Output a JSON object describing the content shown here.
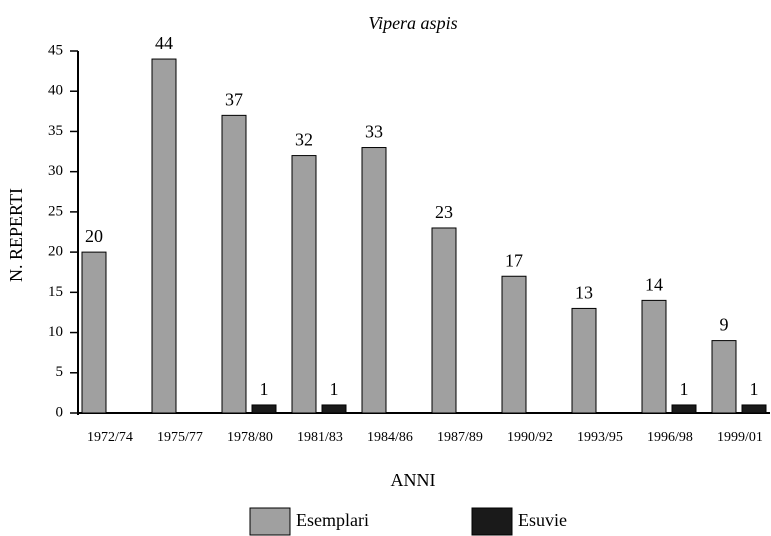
{
  "chart_data": {
    "type": "bar",
    "title": "Vipera aspis",
    "x_label": "ANNI",
    "y_label": "N. REPERTI",
    "categories": [
      "1972/74",
      "1975/77",
      "1978/80",
      "1981/83",
      "1984/86",
      "1987/89",
      "1990/92",
      "1993/95",
      "1996/98",
      "1999/01"
    ],
    "series": [
      {
        "name": "Esemplari",
        "color": "#a0a0a0",
        "values": [
          20,
          44,
          37,
          32,
          33,
          23,
          17,
          13,
          14,
          9
        ]
      },
      {
        "name": "Esuvie",
        "color": "#1a1a1a",
        "values": [
          0,
          0,
          1,
          1,
          0,
          0,
          0,
          0,
          1,
          1
        ],
        "value_labels": [
          null,
          null,
          "1",
          "1",
          null,
          null,
          null,
          null,
          "1",
          "1"
        ]
      }
    ],
    "ylim": [
      0,
      45
    ],
    "yticks": [
      0,
      5,
      10,
      15,
      20,
      25,
      30,
      35,
      40,
      45
    ]
  }
}
